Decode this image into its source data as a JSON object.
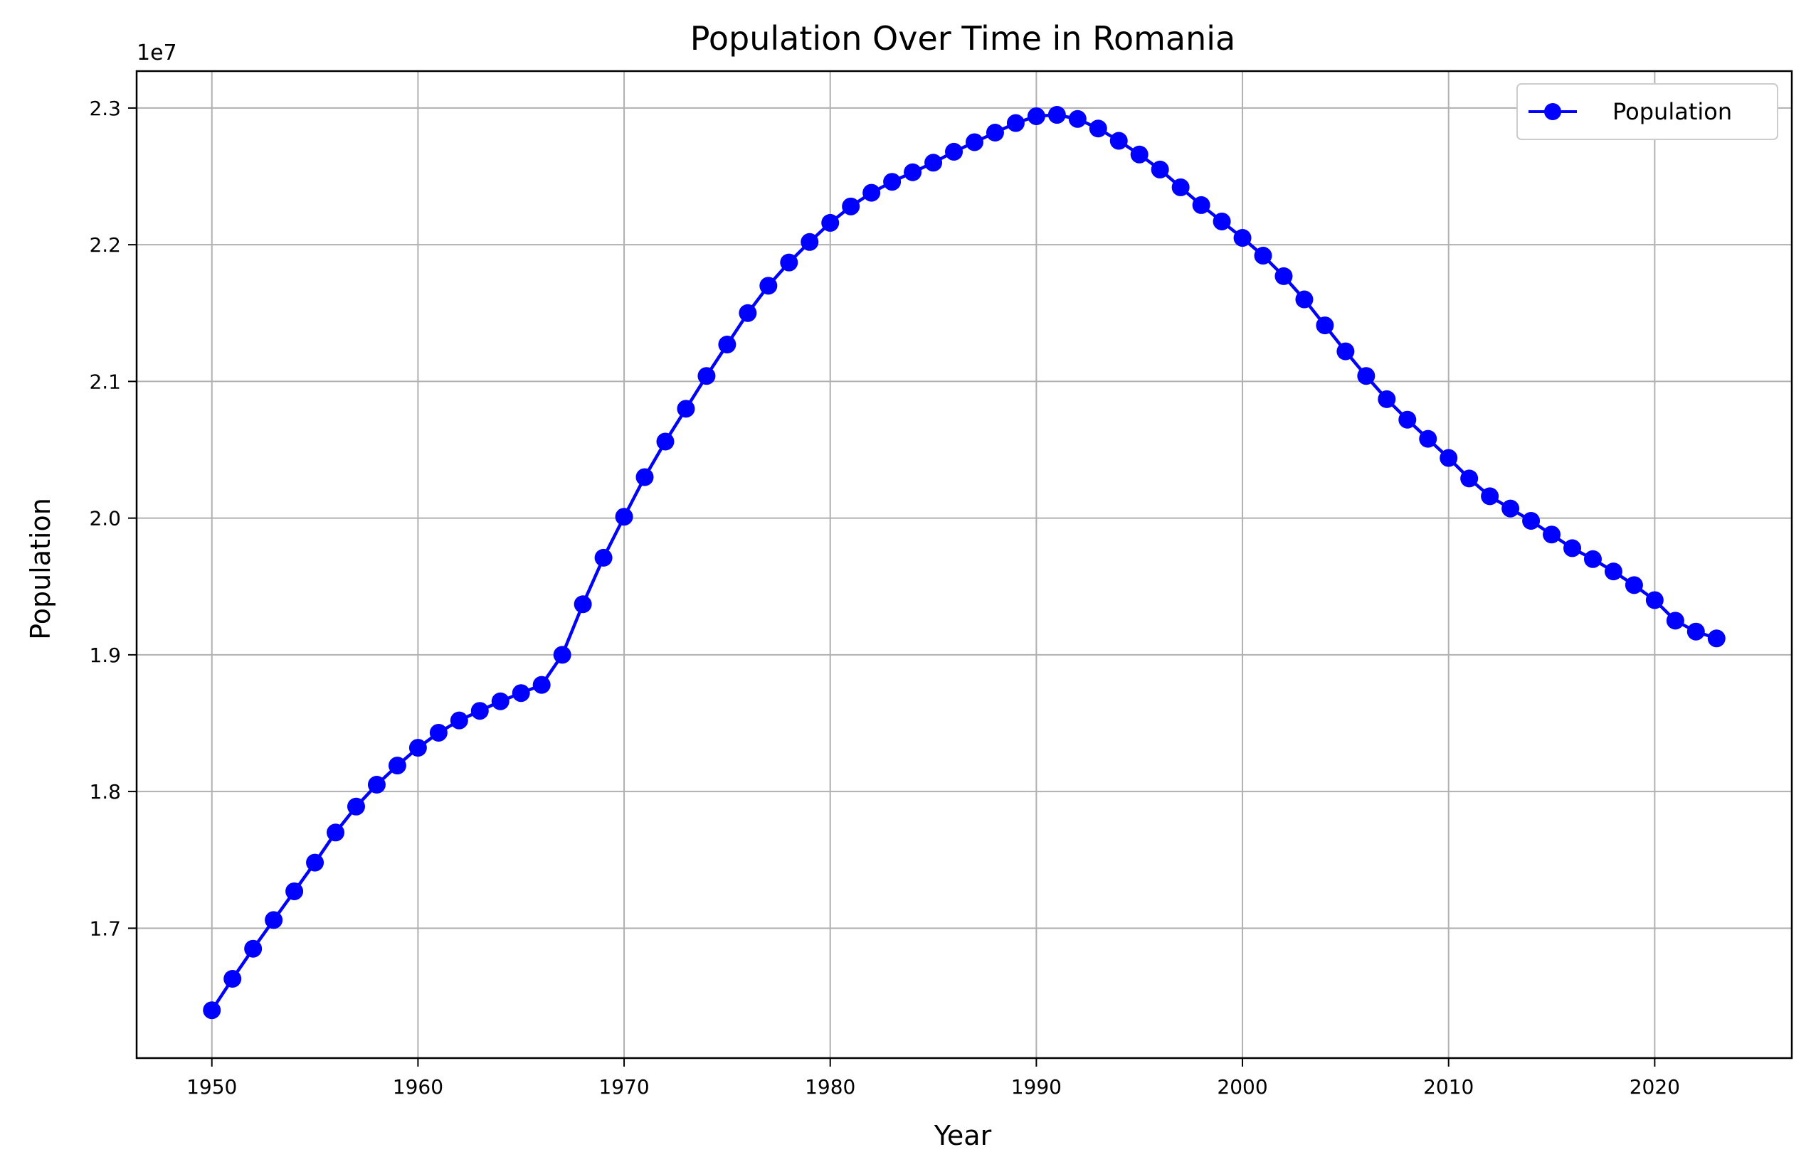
{
  "chart_data": {
    "type": "line",
    "title": "Population Over Time in Romania",
    "xlabel": "Year",
    "ylabel": "Population",
    "y_offset_label": "1e7",
    "xlim": [
      1946.35,
      2026.65
    ],
    "ylim": [
      16050000,
      23270000
    ],
    "x_ticks": [
      1950,
      1960,
      1970,
      1980,
      1990,
      2000,
      2010,
      2020
    ],
    "x_tick_labels": [
      "1950",
      "1960",
      "1970",
      "1980",
      "1990",
      "2000",
      "2010",
      "2020"
    ],
    "y_ticks": [
      17000000,
      18000000,
      19000000,
      20000000,
      21000000,
      22000000,
      23000000
    ],
    "y_tick_labels": [
      "1.7",
      "1.8",
      "1.9",
      "2.0",
      "2.1",
      "2.2",
      "2.3"
    ],
    "grid": true,
    "legend_position": "top-right",
    "series": [
      {
        "name": "Population",
        "color": "#0000ff",
        "marker": "circle",
        "x": [
          1950,
          1951,
          1952,
          1953,
          1954,
          1955,
          1956,
          1957,
          1958,
          1959,
          1960,
          1961,
          1962,
          1963,
          1964,
          1965,
          1966,
          1967,
          1968,
          1969,
          1970,
          1971,
          1972,
          1973,
          1974,
          1975,
          1976,
          1977,
          1978,
          1979,
          1980,
          1981,
          1982,
          1983,
          1984,
          1985,
          1986,
          1987,
          1988,
          1989,
          1990,
          1991,
          1992,
          1993,
          1994,
          1995,
          1996,
          1997,
          1998,
          1999,
          2000,
          2001,
          2002,
          2003,
          2004,
          2005,
          2006,
          2007,
          2008,
          2009,
          2010,
          2011,
          2012,
          2013,
          2014,
          2015,
          2016,
          2017,
          2018,
          2019,
          2020,
          2021,
          2022,
          2023
        ],
        "values": [
          16400000,
          16630000,
          16850000,
          17060000,
          17270000,
          17480000,
          17700000,
          17890000,
          18050000,
          18190000,
          18320000,
          18430000,
          18520000,
          18590000,
          18660000,
          18720000,
          18780000,
          19000000,
          19370000,
          19710000,
          20010000,
          20300000,
          20560000,
          20800000,
          21040000,
          21270000,
          21500000,
          21700000,
          21870000,
          22020000,
          22160000,
          22280000,
          22380000,
          22460000,
          22530000,
          22600000,
          22680000,
          22750000,
          22820000,
          22890000,
          22940000,
          22950000,
          22920000,
          22850000,
          22760000,
          22660000,
          22550000,
          22420000,
          22290000,
          22170000,
          22050000,
          21920000,
          21770000,
          21600000,
          21410000,
          21220000,
          21040000,
          20870000,
          20720000,
          20580000,
          20440000,
          20290000,
          20160000,
          20070000,
          19980000,
          19880000,
          19780000,
          19700000,
          19610000,
          19510000,
          19400000,
          19250000,
          19170000,
          19120000
        ]
      }
    ]
  }
}
